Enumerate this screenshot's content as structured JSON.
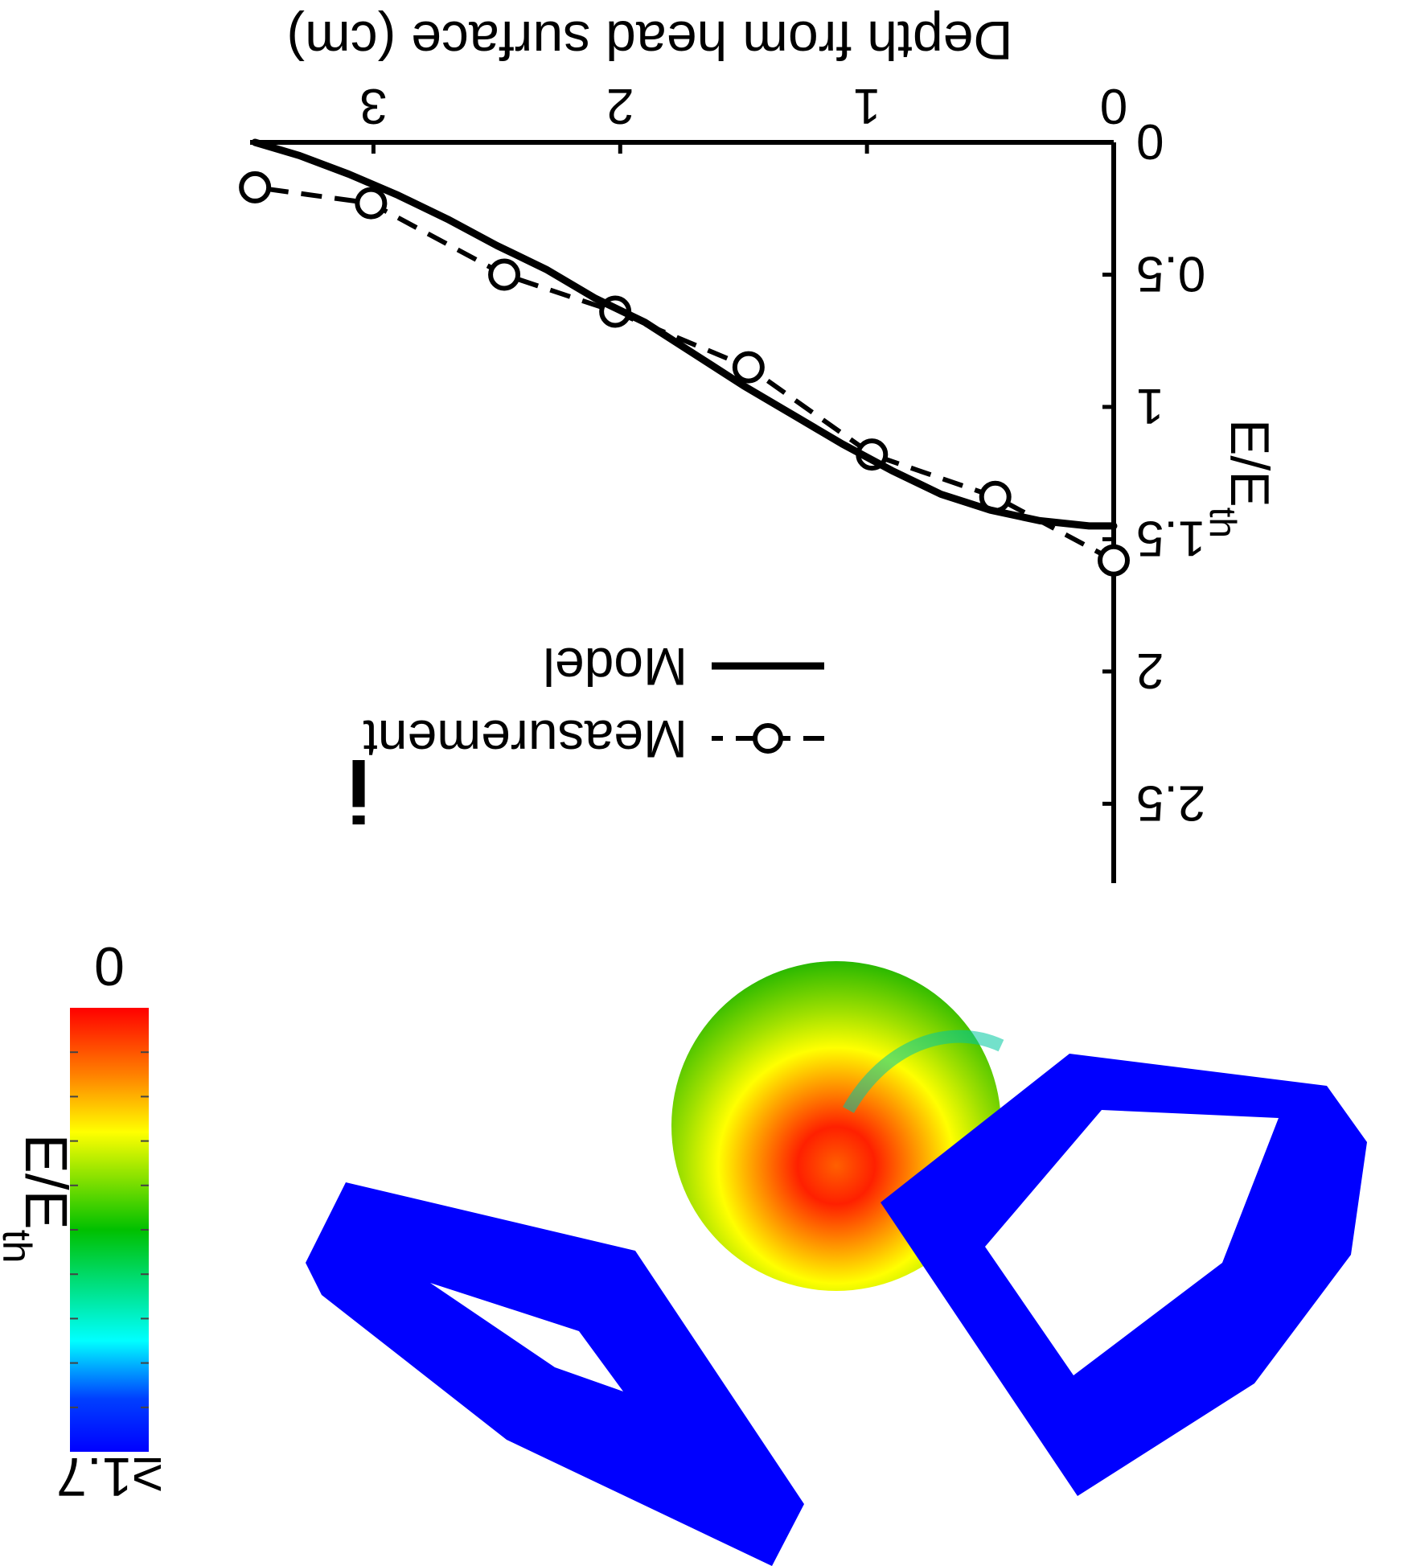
{
  "chart_data": {
    "type": "line",
    "orientation": "rotated-180",
    "xlabel": "Depth from head surface (cm)",
    "ylabel": "E/E",
    "ylabel_sub": "th",
    "xlim": [
      0,
      3.5
    ],
    "ylim": [
      0,
      2.8
    ],
    "x_ticks": [
      "0",
      "1",
      "2",
      "3"
    ],
    "x_tick_values": [
      0,
      1,
      2,
      3
    ],
    "y_ticks": [
      "0",
      "0.5",
      "1",
      "1.5",
      "2",
      "2.5"
    ],
    "y_tick_values": [
      0,
      0.5,
      1,
      1.5,
      2,
      2.5
    ],
    "grid": false,
    "legend_position": "lower-right",
    "panel_label": "i",
    "series": [
      {
        "name": "Measurement",
        "style": "dashed-circle",
        "x": [
          0,
          0.48,
          0.98,
          1.48,
          2.02,
          2.47,
          3.01,
          3.48
        ],
        "y": [
          1.58,
          1.34,
          1.18,
          0.85,
          0.64,
          0.5,
          0.23,
          0.17
        ]
      },
      {
        "name": "Model",
        "style": "solid",
        "x": [
          0,
          0.1,
          0.3,
          0.5,
          0.7,
          0.9,
          1.1,
          1.3,
          1.5,
          1.7,
          1.9,
          2.1,
          2.3,
          2.5,
          2.7,
          2.9,
          3.1,
          3.3,
          3.48
        ],
        "y": [
          1.45,
          1.45,
          1.43,
          1.39,
          1.33,
          1.24,
          1.14,
          1.03,
          0.92,
          0.8,
          0.68,
          0.59,
          0.48,
          0.39,
          0.29,
          0.2,
          0.12,
          0.05,
          0
        ]
      }
    ]
  },
  "colorbar": {
    "label": "E/E",
    "label_sub": "th",
    "top_label": "0",
    "bottom_label": "≥1.7",
    "colors": [
      "#0000ff",
      "#00ffff",
      "#00c000",
      "#ffff00",
      "#ff8000",
      "#ff0000"
    ]
  }
}
